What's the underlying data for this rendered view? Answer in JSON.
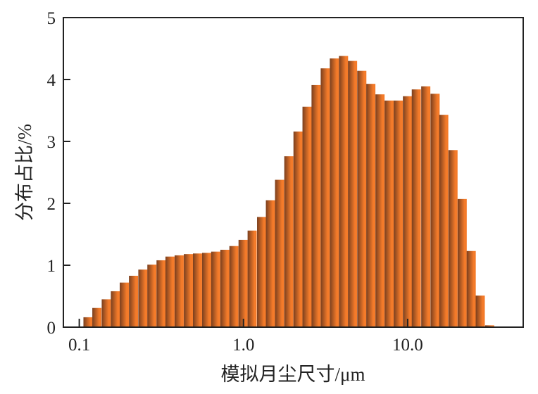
{
  "chart_data": {
    "type": "bar",
    "title": "",
    "xlabel": "模拟月尘尺寸/μm",
    "ylabel": "分布占比/%",
    "xscale": "log",
    "xlim": [
      0.08,
      50.6
    ],
    "ylim": [
      0,
      5
    ],
    "grid": false,
    "xticks": [
      {
        "v": 0.1,
        "label": "0.1"
      },
      {
        "v": 1,
        "label": "1.0"
      },
      {
        "v": 10,
        "label": "10.0"
      }
    ],
    "yticks": [
      {
        "v": 0,
        "label": "0"
      },
      {
        "v": 1,
        "label": "1"
      },
      {
        "v": 2,
        "label": "2"
      },
      {
        "v": 3,
        "label": "3"
      },
      {
        "v": 4,
        "label": "4"
      },
      {
        "v": 5,
        "label": "5"
      }
    ],
    "bar_color_dark": "#7a3f1e",
    "bar_color_light": "#f47b2a",
    "x": [
      0.113,
      0.128,
      0.146,
      0.166,
      0.188,
      0.214,
      0.244,
      0.277,
      0.315,
      0.357,
      0.406,
      0.462,
      0.525,
      0.597,
      0.678,
      0.771,
      0.875,
      0.995,
      1.13,
      1.29,
      1.46,
      1.66,
      1.89,
      2.15,
      2.44,
      2.77,
      3.15,
      3.58,
      4.07,
      4.62,
      5.26,
      5.97,
      6.79,
      7.72,
      8.77,
      9.98,
      11.3,
      12.9,
      14.7,
      16.6,
      18.9,
      21.5,
      24.4,
      27.7,
      31.6
    ],
    "values": [
      0.16,
      0.31,
      0.45,
      0.58,
      0.72,
      0.83,
      0.93,
      1.01,
      1.08,
      1.14,
      1.16,
      1.18,
      1.19,
      1.2,
      1.22,
      1.25,
      1.31,
      1.41,
      1.56,
      1.78,
      2.05,
      2.38,
      2.76,
      3.16,
      3.56,
      3.91,
      4.18,
      4.34,
      4.38,
      4.3,
      4.14,
      3.93,
      3.76,
      3.66,
      3.66,
      3.73,
      3.84,
      3.89,
      3.77,
      3.43,
      2.86,
      2.07,
      1.23,
      0.51,
      0.03
    ]
  }
}
